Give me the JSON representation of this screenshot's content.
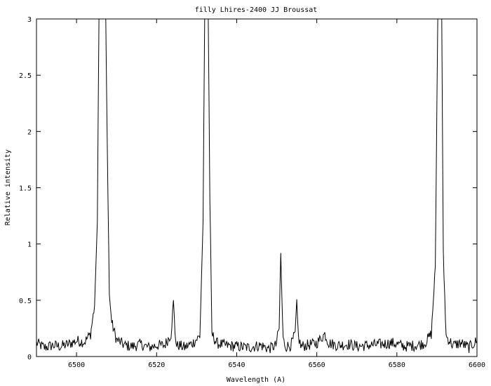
{
  "chart_data": {
    "type": "line",
    "title": "filly Lhires-2400  JJ Broussat",
    "xlabel": "Wavelength (A)",
    "ylabel": "Relative intensity",
    "xlim": [
      6490,
      6600
    ],
    "ylim": [
      0,
      3
    ],
    "xticks": [
      6500,
      6520,
      6540,
      6560,
      6580,
      6600
    ],
    "yticks": [
      0,
      0.5,
      1,
      1.5,
      2,
      2.5,
      3
    ],
    "ytick_labels": [
      "0",
      "0.5",
      "1",
      "1.5",
      "2",
      "2.5",
      "3"
    ],
    "grid": false,
    "legend": "none",
    "line_color": "#000000",
    "series": [
      {
        "x": [
          6490,
          6492,
          6494,
          6496,
          6498,
          6500,
          6502,
          6503.5,
          6504.5,
          6505.2,
          6505.6,
          6505.9,
          6506.2,
          6506.6,
          6507.0,
          6507.3,
          6507.7,
          6508.2,
          6508.8,
          6510,
          6512,
          6514,
          6516,
          6518,
          6520,
          6522,
          6523.6,
          6524.2,
          6524.6,
          6525.0,
          6525.6,
          6527,
          6529,
          6530.8,
          6531.6,
          6532.0,
          6532.3,
          6532.6,
          6532.9,
          6533.3,
          6533.8,
          6535,
          6537,
          6540,
          6543,
          6546,
          6548,
          6549.8,
          6550.6,
          6551.0,
          6551.3,
          6551.6,
          6552.2,
          6553.5,
          6554.6,
          6555.0,
          6555.4,
          6556.0,
          6557.5,
          6560,
          6562,
          6563,
          6565,
          6568,
          6570,
          6573,
          6576,
          6579,
          6582,
          6585,
          6587,
          6588.6,
          6589.6,
          6590.2,
          6590.5,
          6590.8,
          6591.2,
          6591.6,
          6592.3,
          6594,
          6596,
          6598,
          6600
        ],
        "y": [
          0.12,
          0.08,
          0.1,
          0.09,
          0.11,
          0.14,
          0.13,
          0.2,
          0.45,
          1.2,
          3.0,
          3.0,
          3.0,
          3.0,
          3.0,
          3.0,
          1.8,
          0.55,
          0.3,
          0.15,
          0.1,
          0.09,
          0.11,
          0.08,
          0.1,
          0.1,
          0.2,
          0.48,
          0.22,
          0.09,
          0.1,
          0.08,
          0.12,
          0.18,
          1.2,
          3.0,
          3.0,
          3.0,
          3.0,
          1.4,
          0.2,
          0.12,
          0.1,
          0.09,
          0.08,
          0.1,
          0.07,
          0.1,
          0.25,
          0.92,
          0.5,
          0.15,
          0.09,
          0.1,
          0.2,
          0.46,
          0.18,
          0.09,
          0.1,
          0.12,
          0.2,
          0.12,
          0.1,
          0.11,
          0.09,
          0.1,
          0.11,
          0.12,
          0.09,
          0.1,
          0.12,
          0.2,
          0.8,
          3.0,
          3.0,
          3.0,
          3.0,
          0.9,
          0.18,
          0.1,
          0.12,
          0.08,
          0.14
        ]
      }
    ]
  }
}
